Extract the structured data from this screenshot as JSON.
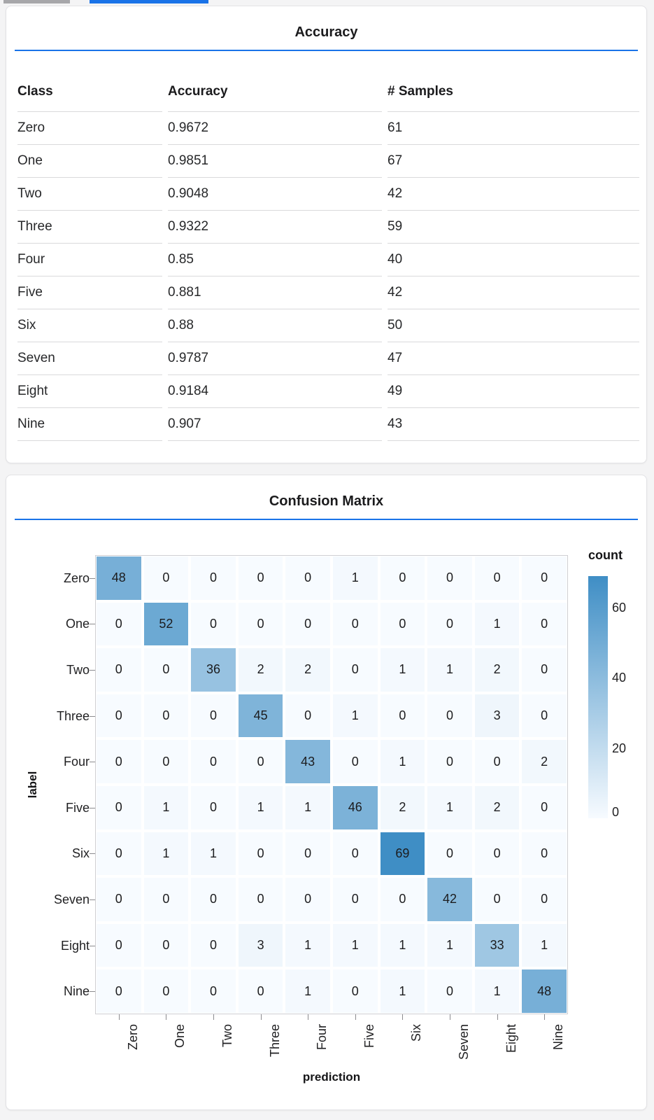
{
  "page_background": "#f4f4f5",
  "top_indicators": {
    "inactive_color": "#a7a7aa",
    "active_color": "#1a73e8"
  },
  "accent_rule_color": "#1a73e8",
  "chart_data": [
    {
      "type": "table",
      "title": "Accuracy",
      "columns": [
        "Class",
        "Accuracy",
        "# Samples"
      ],
      "rows": [
        [
          "Zero",
          "0.9672",
          "61"
        ],
        [
          "One",
          "0.9851",
          "67"
        ],
        [
          "Two",
          "0.9048",
          "42"
        ],
        [
          "Three",
          "0.9322",
          "59"
        ],
        [
          "Four",
          "0.85",
          "40"
        ],
        [
          "Five",
          "0.881",
          "42"
        ],
        [
          "Six",
          "0.88",
          "50"
        ],
        [
          "Seven",
          "0.9787",
          "47"
        ],
        [
          "Eight",
          "0.9184",
          "49"
        ],
        [
          "Nine",
          "0.907",
          "43"
        ]
      ]
    },
    {
      "type": "heatmap",
      "title": "Confusion Matrix",
      "xlabel": "prediction",
      "ylabel": "label",
      "x_categories": [
        "Zero",
        "One",
        "Two",
        "Three",
        "Four",
        "Five",
        "Six",
        "Seven",
        "Eight",
        "Nine"
      ],
      "y_categories": [
        "Zero",
        "One",
        "Two",
        "Three",
        "Four",
        "Five",
        "Six",
        "Seven",
        "Eight",
        "Nine"
      ],
      "matrix": [
        [
          48,
          0,
          0,
          0,
          0,
          1,
          0,
          0,
          0,
          0
        ],
        [
          0,
          52,
          0,
          0,
          0,
          0,
          0,
          0,
          1,
          0
        ],
        [
          0,
          0,
          36,
          2,
          2,
          0,
          1,
          1,
          2,
          0
        ],
        [
          0,
          0,
          0,
          45,
          0,
          1,
          0,
          0,
          3,
          0
        ],
        [
          0,
          0,
          0,
          0,
          43,
          0,
          1,
          0,
          0,
          2
        ],
        [
          0,
          1,
          0,
          1,
          1,
          46,
          2,
          1,
          2,
          0
        ],
        [
          0,
          1,
          1,
          0,
          0,
          0,
          69,
          0,
          0,
          0
        ],
        [
          0,
          0,
          0,
          0,
          0,
          0,
          0,
          42,
          0,
          0
        ],
        [
          0,
          0,
          0,
          3,
          1,
          1,
          1,
          1,
          33,
          1
        ],
        [
          0,
          0,
          0,
          0,
          1,
          0,
          1,
          0,
          1,
          48
        ]
      ],
      "legend": {
        "title": "count",
        "ticks": [
          0,
          20,
          40,
          60
        ],
        "domain": [
          0,
          69
        ]
      },
      "color_low": "#f7fbff",
      "color_high": "#3f8ec5",
      "grid": false,
      "legend_position": "right"
    }
  ]
}
